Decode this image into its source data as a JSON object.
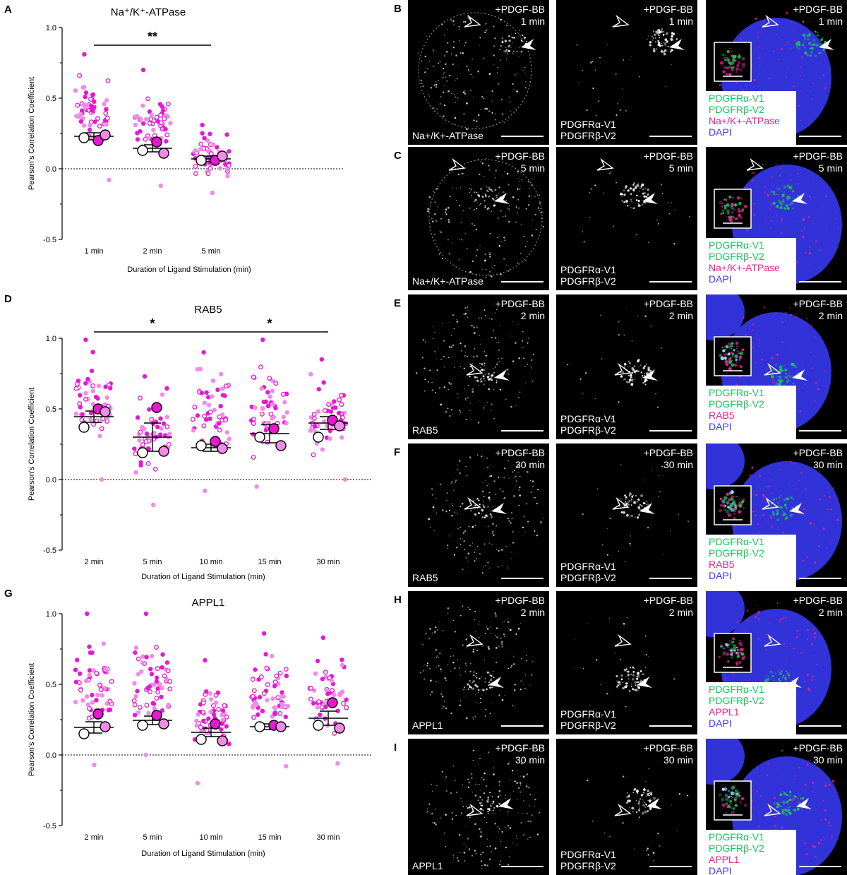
{
  "colors": {
    "magenta": "#e619d2",
    "light_pink": "#f08ce8",
    "green": "#17c55b",
    "channel_magenta": "#e8208f",
    "dapi": "#3b3bff"
  },
  "chart_data": [
    {
      "panel": "A",
      "type": "scatter",
      "title": "Na⁺/K⁺-ATPase",
      "xlabel": "Duration of Ligand Stimulation (min)",
      "ylabel": "Pearson's Correlation Coefficient",
      "ylim": [
        -0.5,
        1.0
      ],
      "yticks": [
        "-0.5",
        "0.0",
        "0.5",
        "1.0"
      ],
      "categories": [
        "1 min",
        "2 min",
        "5 min"
      ],
      "means": [
        0.23,
        0.145,
        0.07
      ],
      "sem": [
        0.025,
        0.025,
        0.02
      ],
      "replicate_means": [
        [
          0.2,
          0.24,
          0.22
        ],
        [
          0.19,
          0.11,
          0.13
        ],
        [
          0.06,
          0.09,
          0.06
        ]
      ],
      "spread": [
        [
          -0.08,
          0.81
        ],
        [
          -0.12,
          0.7
        ],
        [
          -0.17,
          0.31
        ]
      ],
      "points_per_group": 56,
      "significance": [
        {
          "from": 0,
          "to": 2,
          "label": "**"
        }
      ]
    },
    {
      "panel": "D",
      "type": "scatter",
      "title": "RAB5",
      "xlabel": "Duration of Ligand Stimulation (min)",
      "ylabel": "Pearson's Correlation Coefficient",
      "ylim": [
        -0.5,
        1.0
      ],
      "yticks": [
        "-0.5",
        "0.0",
        "0.5",
        "1.0"
      ],
      "categories": [
        "2 min",
        "5 min",
        "10 min",
        "15 min",
        "30 min"
      ],
      "means": [
        0.445,
        0.3,
        0.225,
        0.325,
        0.4
      ],
      "sem": [
        0.04,
        0.1,
        0.025,
        0.065,
        0.045
      ],
      "replicate_means": [
        [
          0.5,
          0.48,
          0.37
        ],
        [
          0.51,
          0.2,
          0.19
        ],
        [
          0.27,
          0.22,
          0.24
        ],
        [
          0.36,
          0.24,
          0.3
        ],
        [
          0.42,
          0.38,
          0.3
        ]
      ],
      "spread": [
        [
          0.0,
          0.99
        ],
        [
          -0.18,
          0.73
        ],
        [
          -0.08,
          0.9
        ],
        [
          -0.05,
          0.99
        ],
        [
          0.0,
          0.85
        ]
      ],
      "points_per_group": 52,
      "significance": [
        {
          "from": 0,
          "to": 2,
          "label": "*"
        },
        {
          "from": 2,
          "to": 4,
          "label": "*"
        }
      ]
    },
    {
      "panel": "G",
      "type": "scatter",
      "title": "APPL1",
      "xlabel": "Duration of Ligand Stimulation (min)",
      "ylabel": "Pearson's Correlation Coefficient",
      "ylim": [
        -0.5,
        1.0
      ],
      "yticks": [
        "-0.5",
        "0.0",
        "0.5",
        "1.0"
      ],
      "categories": [
        "2 min",
        "5 min",
        "10 min",
        "15 min",
        "30 min"
      ],
      "means": [
        0.195,
        0.245,
        0.16,
        0.2,
        0.26
      ],
      "sem": [
        0.04,
        0.03,
        0.03,
        0.02,
        0.05
      ],
      "replicate_means": [
        [
          0.29,
          0.2,
          0.15
        ],
        [
          0.28,
          0.22,
          0.21
        ],
        [
          0.22,
          0.1,
          0.11
        ],
        [
          0.21,
          0.2,
          0.2
        ],
        [
          0.37,
          0.19,
          0.21
        ]
      ],
      "spread": [
        [
          -0.07,
          1.0
        ],
        [
          0.0,
          1.0
        ],
        [
          -0.2,
          0.67
        ],
        [
          -0.08,
          0.86
        ],
        [
          -0.06,
          0.83
        ]
      ],
      "points_per_group": 56,
      "significance": []
    }
  ],
  "micrographs": [
    {
      "panel": "B",
      "time": "1 min",
      "marker": "Na+/K+-ATPase",
      "tiles": [
        {
          "stim": "+PDGF-BB",
          "labels": [
            "Na+/K+-ATPase"
          ]
        },
        {
          "stim": "+PDGF-BB",
          "labels": [
            "PDGFRα-V1",
            "PDGFRβ-V2"
          ]
        },
        {
          "stim": "+PDGF-BB",
          "legend": [
            "PDGFRα-V1",
            "PDGFRβ-V2",
            "Na+/K+-ATPase",
            "DAPI"
          ]
        }
      ]
    },
    {
      "panel": "C",
      "time": "5 min",
      "marker": "Na+/K+-ATPase",
      "tiles": [
        {
          "stim": "+PDGF-BB",
          "labels": [
            "Na+/K+-ATPase"
          ]
        },
        {
          "stim": "+PDGF-BB",
          "labels": [
            "PDGFRα-V1",
            "PDGFRβ-V2"
          ]
        },
        {
          "stim": "+PDGF-BB",
          "legend": [
            "PDGFRα-V1",
            "PDGFRβ-V2",
            "Na+/K+-ATPase",
            "DAPI"
          ]
        }
      ]
    },
    {
      "panel": "E",
      "time": "2 min",
      "marker": "RAB5",
      "tiles": [
        {
          "stim": "+PDGF-BB",
          "labels": [
            "RAB5"
          ]
        },
        {
          "stim": "+PDGF-BB",
          "labels": [
            "PDGFRα-V1",
            "PDGFRβ-V2"
          ]
        },
        {
          "stim": "+PDGF-BB",
          "legend": [
            "PDGFRα-V1",
            "PDGFRβ-V2",
            "RAB5",
            "DAPI"
          ]
        }
      ]
    },
    {
      "panel": "F",
      "time": "30 min",
      "marker": "RAB5",
      "tiles": [
        {
          "stim": "+PDGF-BB",
          "labels": [
            "RAB5"
          ]
        },
        {
          "stim": "+PDGF-BB",
          "labels": [
            "PDGFRα-V1",
            "PDGFRβ-V2"
          ]
        },
        {
          "stim": "+PDGF-BB",
          "legend": [
            "PDGFRα-V1",
            "PDGFRβ-V2",
            "RAB5",
            "DAPI"
          ]
        }
      ]
    },
    {
      "panel": "H",
      "time": "2 min",
      "marker": "APPL1",
      "tiles": [
        {
          "stim": "+PDGF-BB",
          "labels": [
            "APPL1"
          ]
        },
        {
          "stim": "+PDGF-BB",
          "labels": [
            "PDGFRα-V1",
            "PDGFRβ-V2"
          ]
        },
        {
          "stim": "+PDGF-BB",
          "legend": [
            "PDGFRα-V1",
            "PDGFRβ-V2",
            "APPL1",
            "DAPI"
          ]
        }
      ]
    },
    {
      "panel": "I",
      "time": "30 min",
      "marker": "APPL1",
      "tiles": [
        {
          "stim": "+PDGF-BB",
          "labels": [
            "APPL1"
          ]
        },
        {
          "stim": "+PDGF-BB",
          "labels": [
            "PDGFRα-V1",
            "PDGFRβ-V2"
          ]
        },
        {
          "stim": "+PDGF-BB",
          "legend": [
            "PDGFRα-V1",
            "PDGFRβ-V2",
            "APPL1",
            "DAPI"
          ]
        }
      ]
    }
  ]
}
